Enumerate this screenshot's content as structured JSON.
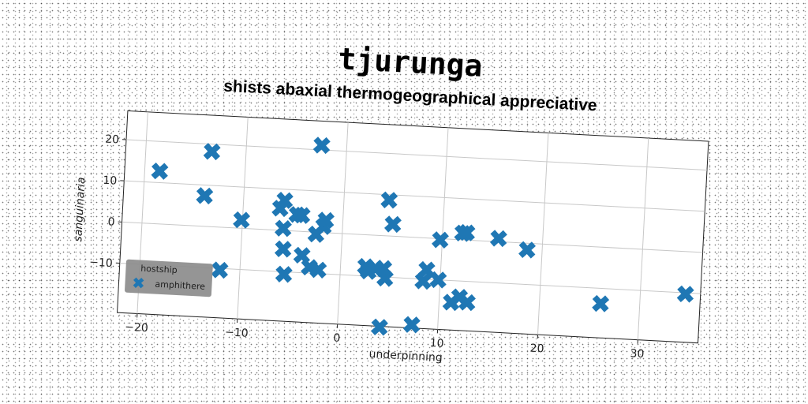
{
  "chart_data": {
    "type": "scatter",
    "title": "tjurunga",
    "subtitle": "shists abaxial thermogeographical appreciative",
    "xlabel": "underpinning",
    "ylabel": "sanguinaria",
    "xlim": [
      -22,
      36
    ],
    "ylim": [
      -22,
      27
    ],
    "xticks": [
      -20,
      -10,
      0,
      10,
      20,
      30
    ],
    "yticks": [
      -10,
      0,
      10,
      20
    ],
    "grid": true,
    "legend": {
      "title": "hostship",
      "placement": "lower-left"
    },
    "series": [
      {
        "name": "amphithere",
        "color": "#1f77b4",
        "marker": "X",
        "points": [
          [
            -18.5,
            12.8
          ],
          [
            -13.4,
            18.2
          ],
          [
            -13.9,
            7.4
          ],
          [
            -12.0,
            -10.4
          ],
          [
            -10.1,
            2.0
          ],
          [
            -6.3,
            5.3
          ],
          [
            -5.9,
            7.3
          ],
          [
            -5.9,
            0.5
          ],
          [
            -5.8,
            -4.5
          ],
          [
            -5.6,
            -10.6
          ],
          [
            -4.6,
            4.0
          ],
          [
            -4.1,
            3.9
          ],
          [
            -3.9,
            -5.8
          ],
          [
            -3.1,
            -8.6
          ],
          [
            -2.6,
            -0.5
          ],
          [
            -2.2,
            -9.1
          ],
          [
            -2.5,
            21.1
          ],
          [
            -1.9,
            1.5
          ],
          [
            -1.7,
            3.0
          ],
          [
            2.5,
            -7.7
          ],
          [
            2.8,
            -8.8
          ],
          [
            3.5,
            -8.1
          ],
          [
            4.3,
            -7.9
          ],
          [
            4.5,
            -10.3
          ],
          [
            4.5,
            8.7
          ],
          [
            5.0,
            2.9
          ],
          [
            4.2,
            -22.2
          ],
          [
            7.4,
            -21.2
          ],
          [
            8.3,
            -10.5
          ],
          [
            8.6,
            -7.7
          ],
          [
            9.8,
            -10.0
          ],
          [
            9.8,
            -0.3
          ],
          [
            11.2,
            -15.3
          ],
          [
            12.0,
            -13.9
          ],
          [
            12.0,
            1.6
          ],
          [
            12.4,
            1.8
          ],
          [
            12.8,
            -15.1
          ],
          [
            15.6,
            0.8
          ],
          [
            18.5,
            -1.6
          ],
          [
            26.1,
            -13.7
          ],
          [
            34.5,
            -10.3
          ]
        ]
      }
    ]
  }
}
